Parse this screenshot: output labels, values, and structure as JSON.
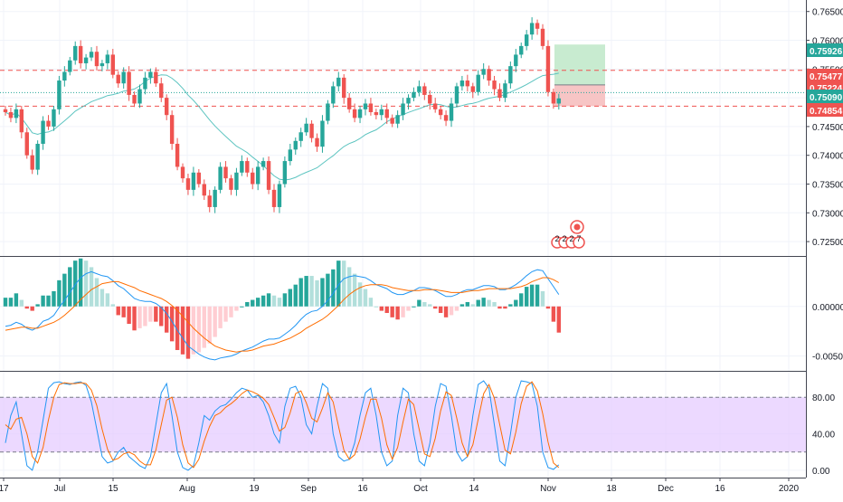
{
  "chart_data": {
    "type": "candlestick",
    "price_axis": {
      "ticks": [
        "0.76500",
        "0.76000",
        "0.75500",
        "0.75000",
        "0.74500",
        "0.74000",
        "0.73500",
        "0.73000",
        "0.72500"
      ],
      "ylim": [
        0.7225,
        0.767
      ]
    },
    "x_axis": {
      "tick_labels": [
        "17",
        "Jul",
        "15",
        "Aug",
        "19",
        "Sep",
        "16",
        "Oct",
        "14",
        "Nov",
        "18",
        "Dec",
        "16",
        "2020"
      ]
    },
    "price_labels": [
      {
        "text": "0.75926",
        "color": "#26a69a"
      },
      {
        "text": "0.75477",
        "color": "#ef5350"
      },
      {
        "text": "0.75224",
        "color": "#ef5350"
      },
      {
        "text": "0.75090",
        "color": "#26a69a"
      },
      {
        "text": "0.74854",
        "color": "#ef5350"
      }
    ],
    "horizontal_lines": [
      {
        "price": 0.75477,
        "style": "dashed",
        "color": "#ef5350"
      },
      {
        "price": 0.74854,
        "style": "dashed",
        "color": "#ef5350"
      },
      {
        "price": 0.7509,
        "style": "dotted",
        "color": "#26a69a"
      }
    ],
    "position_tool": {
      "entry": 0.75224,
      "take_profit": 0.75926,
      "stop_loss": 0.74854
    },
    "event_markers": [
      "2",
      "2",
      "2",
      "7"
    ],
    "candles": [
      0.7475,
      0.7465,
      0.748,
      0.744,
      0.74,
      0.7375,
      0.742,
      0.746,
      0.745,
      0.748,
      0.753,
      0.7545,
      0.7565,
      0.759,
      0.756,
      0.757,
      0.758,
      0.7555,
      0.756,
      0.7575,
      0.754,
      0.7525,
      0.7545,
      0.7505,
      0.749,
      0.7515,
      0.7535,
      0.7545,
      0.7525,
      0.75,
      0.747,
      0.742,
      0.738,
      0.736,
      0.734,
      0.737,
      0.735,
      0.733,
      0.731,
      0.734,
      0.738,
      0.736,
      0.734,
      0.737,
      0.739,
      0.737,
      0.735,
      0.738,
      0.739,
      0.734,
      0.731,
      0.735,
      0.739,
      0.741,
      0.7425,
      0.744,
      0.7455,
      0.743,
      0.7415,
      0.746,
      0.749,
      0.752,
      0.7535,
      0.75,
      0.748,
      0.7465,
      0.748,
      0.749,
      0.7475,
      0.747,
      0.748,
      0.7465,
      0.7455,
      0.747,
      0.749,
      0.75,
      0.751,
      0.752,
      0.7505,
      0.749,
      0.748,
      0.747,
      0.746,
      0.749,
      0.752,
      0.753,
      0.752,
      0.751,
      0.754,
      0.755,
      0.753,
      0.7515,
      0.75,
      0.7525,
      0.7555,
      0.7575,
      0.759,
      0.761,
      0.763,
      0.762,
      0.759,
      0.751,
      0.749,
      0.7499
    ],
    "macd": {
      "ticks": [
        "0.00000",
        "-0.00500"
      ],
      "ylim": [
        -0.0065,
        0.005
      ],
      "macd_line": [
        -0.002,
        -0.0019,
        -0.0016,
        -0.0018,
        -0.0022,
        -0.0024,
        -0.0021,
        -0.0015,
        -0.0013,
        -0.0009,
        -0.0001,
        0.0006,
        0.0014,
        0.0022,
        0.0029,
        0.0033,
        0.0035,
        0.0033,
        0.0031,
        0.003,
        0.0026,
        0.0021,
        0.0018,
        0.0013,
        0.0008,
        0.0006,
        0.0005,
        0.0005,
        0.0003,
        -0.0001,
        -0.0007,
        -0.0015,
        -0.0024,
        -0.0032,
        -0.004,
        -0.0044,
        -0.0048,
        -0.0051,
        -0.0053,
        -0.0054,
        -0.0052,
        -0.0051,
        -0.005,
        -0.0048,
        -0.0045,
        -0.0043,
        -0.0041,
        -0.0038,
        -0.0035,
        -0.0033,
        -0.0033,
        -0.0032,
        -0.0028,
        -0.0024,
        -0.0019,
        -0.0013,
        -0.0008,
        -0.0005,
        -0.0004,
        0.0,
        0.0006,
        0.0013,
        0.0022,
        0.0028,
        0.003,
        0.0031,
        0.003,
        0.0029,
        0.0026,
        0.0022,
        0.002,
        0.0018,
        0.0014,
        0.0012,
        0.0012,
        0.0014,
        0.0016,
        0.0019,
        0.0019,
        0.0018,
        0.0016,
        0.0013,
        0.001,
        0.001,
        0.0012,
        0.0015,
        0.0017,
        0.0017,
        0.0019,
        0.0021,
        0.0021,
        0.002,
        0.0017,
        0.0017,
        0.0019,
        0.0022,
        0.0026,
        0.0031,
        0.0035,
        0.0037,
        0.0036,
        0.0028,
        0.002,
        0.0012
      ],
      "signal_line": [
        -0.0024,
        -0.0023,
        -0.0022,
        -0.0021,
        -0.0021,
        -0.0022,
        -0.0022,
        -0.002,
        -0.0018,
        -0.0016,
        -0.0013,
        -0.0009,
        -0.0004,
        0.0001,
        0.0007,
        0.0012,
        0.0017,
        0.002,
        0.0023,
        0.0024,
        0.0025,
        0.0025,
        0.0023,
        0.0021,
        0.0019,
        0.0016,
        0.0014,
        0.0012,
        0.001,
        0.0008,
        0.0005,
        0.0001,
        -0.0004,
        -0.001,
        -0.0016,
        -0.0022,
        -0.0027,
        -0.0032,
        -0.0036,
        -0.004,
        -0.0042,
        -0.0044,
        -0.0045,
        -0.0046,
        -0.0045,
        -0.0045,
        -0.0044,
        -0.0042,
        -0.004,
        -0.0039,
        -0.0038,
        -0.0036,
        -0.0034,
        -0.0032,
        -0.0029,
        -0.0026,
        -0.0022,
        -0.0019,
        -0.0016,
        -0.0013,
        -0.0009,
        -0.0004,
        0.0001,
        0.0007,
        0.0012,
        0.0016,
        0.0019,
        0.0021,
        0.0022,
        0.0022,
        0.0022,
        0.0021,
        0.0019,
        0.0018,
        0.0017,
        0.0016,
        0.0016,
        0.0016,
        0.0017,
        0.0017,
        0.0017,
        0.0016,
        0.0015,
        0.0014,
        0.0014,
        0.0014,
        0.0015,
        0.0016,
        0.0016,
        0.0017,
        0.0018,
        0.0018,
        0.0018,
        0.0018,
        0.0018,
        0.0019,
        0.002,
        0.0022,
        0.0025,
        0.0027,
        0.0029,
        0.0029,
        0.0027,
        0.0024
      ]
    },
    "stochastic": {
      "ticks": [
        "80.00",
        "40.00",
        "0.00"
      ],
      "ylim": [
        -8,
        108
      ],
      "band": [
        20,
        80
      ],
      "k_line": [
        30,
        60,
        75,
        40,
        5,
        0,
        20,
        55,
        90,
        96,
        97,
        95,
        94,
        96,
        97,
        93,
        75,
        45,
        15,
        8,
        10,
        20,
        25,
        15,
        10,
        5,
        2,
        15,
        50,
        85,
        95,
        60,
        20,
        3,
        0,
        5,
        30,
        60,
        55,
        65,
        70,
        72,
        78,
        85,
        90,
        88,
        80,
        82,
        75,
        60,
        40,
        30,
        70,
        90,
        92,
        80,
        50,
        40,
        70,
        95,
        90,
        40,
        15,
        10,
        12,
        30,
        60,
        85,
        90,
        60,
        20,
        5,
        10,
        60,
        90,
        85,
        40,
        10,
        5,
        30,
        70,
        95,
        92,
        60,
        20,
        10,
        15,
        60,
        94,
        98,
        90,
        50,
        10,
        5,
        40,
        80,
        98,
        97,
        95,
        70,
        20,
        3,
        1,
        6
      ],
      "d_line": [
        50,
        45,
        56,
        58,
        40,
        15,
        8,
        25,
        55,
        80,
        94,
        96,
        95,
        95,
        96,
        95,
        88,
        71,
        45,
        23,
        11,
        13,
        18,
        20,
        17,
        10,
        6,
        6,
        22,
        50,
        77,
        80,
        58,
        28,
        8,
        3,
        12,
        32,
        48,
        60,
        63,
        69,
        73,
        78,
        84,
        88,
        86,
        83,
        79,
        72,
        58,
        43,
        47,
        63,
        84,
        87,
        74,
        57,
        53,
        68,
        85,
        75,
        48,
        22,
        12,
        17,
        34,
        58,
        78,
        78,
        57,
        28,
        12,
        25,
        53,
        78,
        72,
        45,
        18,
        15,
        35,
        65,
        86,
        82,
        57,
        30,
        15,
        28,
        56,
        84,
        94,
        79,
        50,
        22,
        18,
        42,
        73,
        92,
        97,
        87,
        62,
        31,
        8,
        3
      ]
    }
  }
}
